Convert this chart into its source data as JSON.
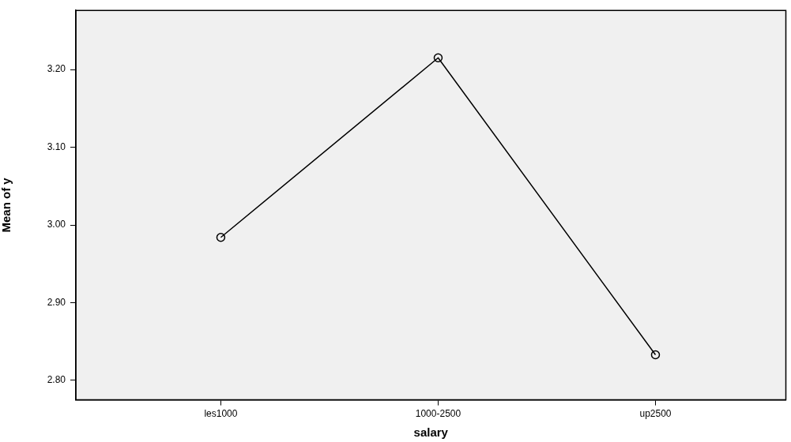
{
  "chart_data": {
    "type": "line",
    "xlabel": "salary",
    "ylabel": "Mean of y",
    "categories": [
      "les1000",
      "1000-2500",
      "up2500"
    ],
    "series": [
      {
        "color": "#000000",
        "values": [
          2.984,
          3.215,
          2.833
        ]
      }
    ],
    "ylim": [
      2.775,
      3.276
    ],
    "yticks": [
      {
        "value": 2.8,
        "label": "2.80"
      },
      {
        "value": 2.9,
        "label": "2.90"
      },
      {
        "value": 3.0,
        "label": "3.00"
      },
      {
        "value": 3.1,
        "label": "3.10"
      },
      {
        "value": 3.2,
        "label": "3.20"
      }
    ],
    "grid": false,
    "legend": false,
    "marker": "circle",
    "line_style": "solid"
  }
}
